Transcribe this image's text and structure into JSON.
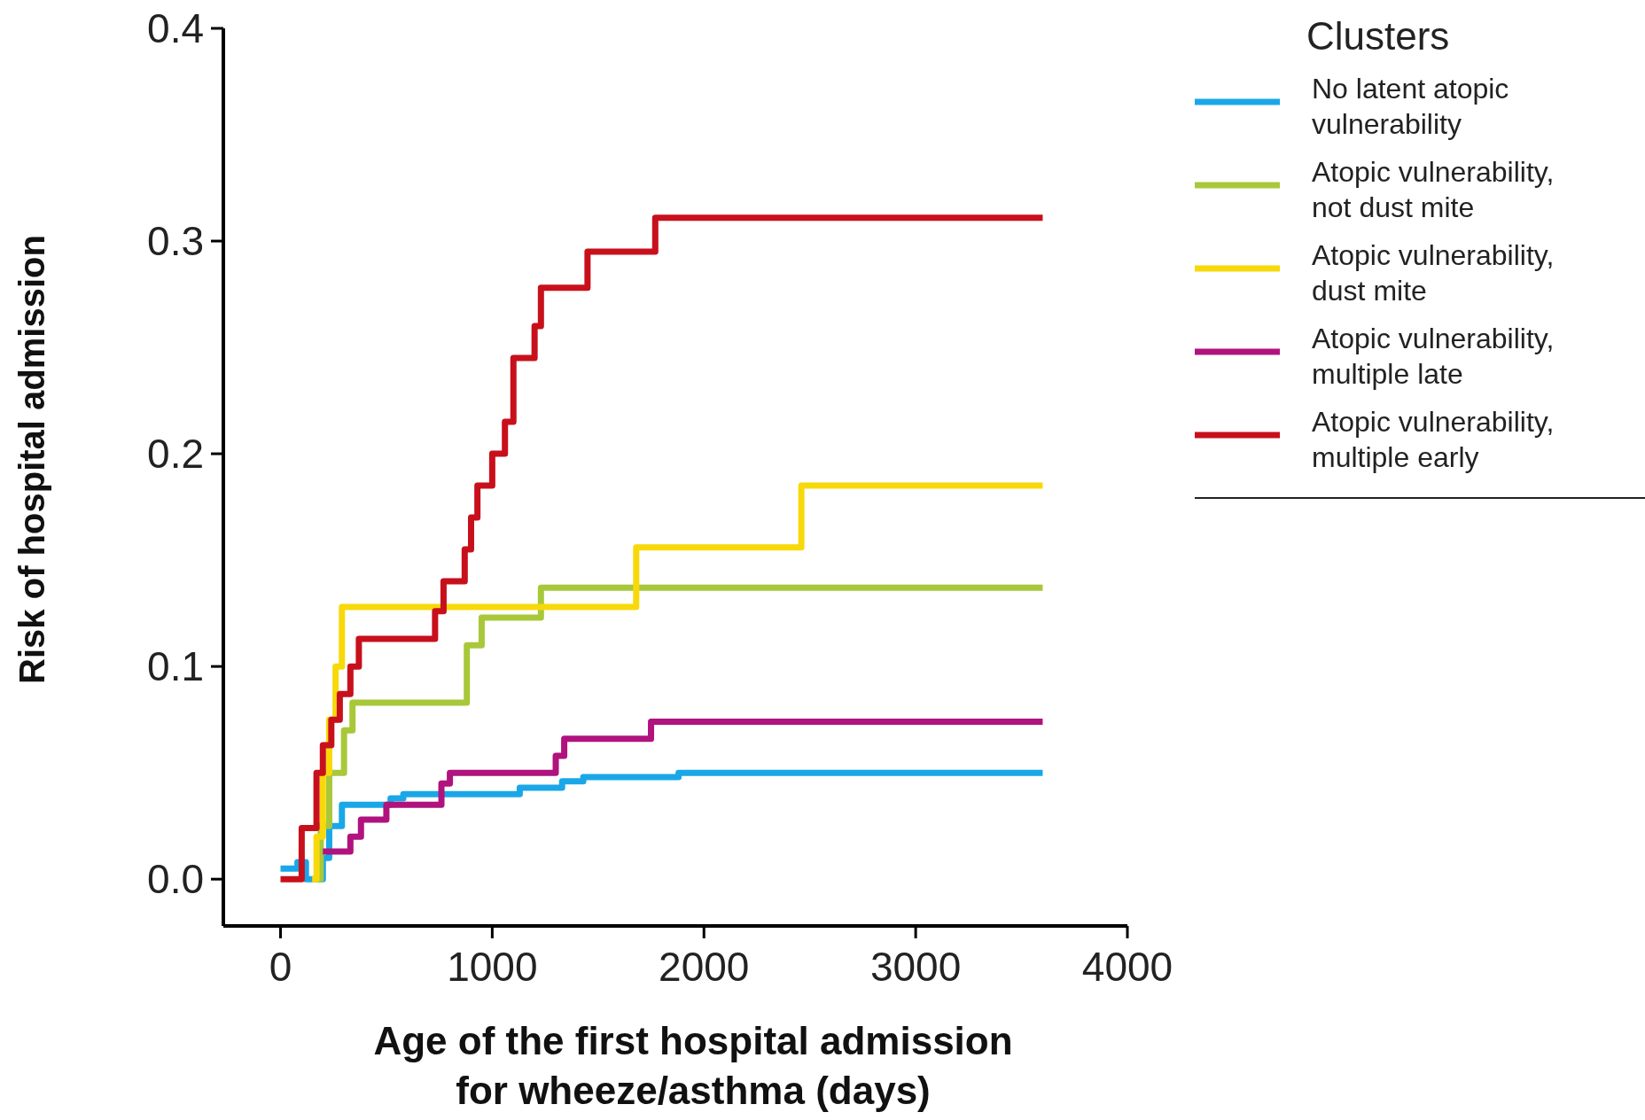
{
  "chart_data": {
    "type": "step",
    "xlabel": "Age of the first hospital admission\nfor wheeze/asthma (days)",
    "ylabel": "Risk of hospital admission",
    "legend_title": "Clusters",
    "legend": "top right",
    "xlim": [
      -270,
      4000
    ],
    "xticks": [
      0,
      1000,
      2000,
      3000,
      4000
    ],
    "ylim": [
      -0.022,
      0.4
    ],
    "yticks": [
      {
        "value": 0,
        "label": "0.0"
      },
      0.1,
      0.2,
      0.3,
      0.4
    ],
    "grid": false,
    "series": [
      {
        "name": "No latent atopic\nvulnerability",
        "color": "#1aa7e8",
        "x": [
          0,
          80,
          120,
          200,
          230,
          290,
          520,
          580,
          1100,
          1130,
          1330,
          1430,
          1880,
          3600
        ],
        "values": [
          0.005,
          0.008,
          0,
          0.01,
          0.025,
          0.035,
          0.038,
          0.04,
          0.04,
          0.043,
          0.046,
          0.048,
          0.05,
          0.05
        ]
      },
      {
        "name": "Atopic vulnerability,\nnot dust mite",
        "color": "#a8c83a",
        "x": [
          150,
          190,
          230,
          300,
          340,
          880,
          950,
          1230,
          3600
        ],
        "values": [
          0,
          0.025,
          0.05,
          0.07,
          0.083,
          0.11,
          0.123,
          0.137,
          0.137
        ]
      },
      {
        "name": "Atopic vulnerability,\ndust mite",
        "color": "#f7d90a",
        "x": [
          150,
          170,
          200,
          230,
          260,
          290,
          1680,
          2460,
          3600
        ],
        "values": [
          0,
          0.02,
          0.05,
          0.075,
          0.1,
          0.128,
          0.156,
          0.185,
          0.185
        ]
      },
      {
        "name": "Atopic vulnerability,\nmultiple late",
        "color": "#b0127e",
        "x": [
          200,
          330,
          380,
          500,
          760,
          800,
          1300,
          1340,
          1750,
          3600
        ],
        "values": [
          0.013,
          0.02,
          0.028,
          0.035,
          0.045,
          0.05,
          0.058,
          0.066,
          0.074,
          0.074
        ]
      },
      {
        "name": "Atopic vulnerability,\nmultiple early",
        "color": "#c8101c",
        "x": [
          0,
          100,
          170,
          200,
          240,
          280,
          330,
          370,
          730,
          770,
          870,
          900,
          930,
          1000,
          1060,
          1100,
          1200,
          1230,
          1450,
          1770,
          3600
        ],
        "values": [
          0,
          0.024,
          0.05,
          0.063,
          0.075,
          0.087,
          0.1,
          0.113,
          0.126,
          0.14,
          0.155,
          0.17,
          0.185,
          0.2,
          0.215,
          0.245,
          0.26,
          0.278,
          0.295,
          0.311,
          0.311
        ]
      }
    ]
  }
}
